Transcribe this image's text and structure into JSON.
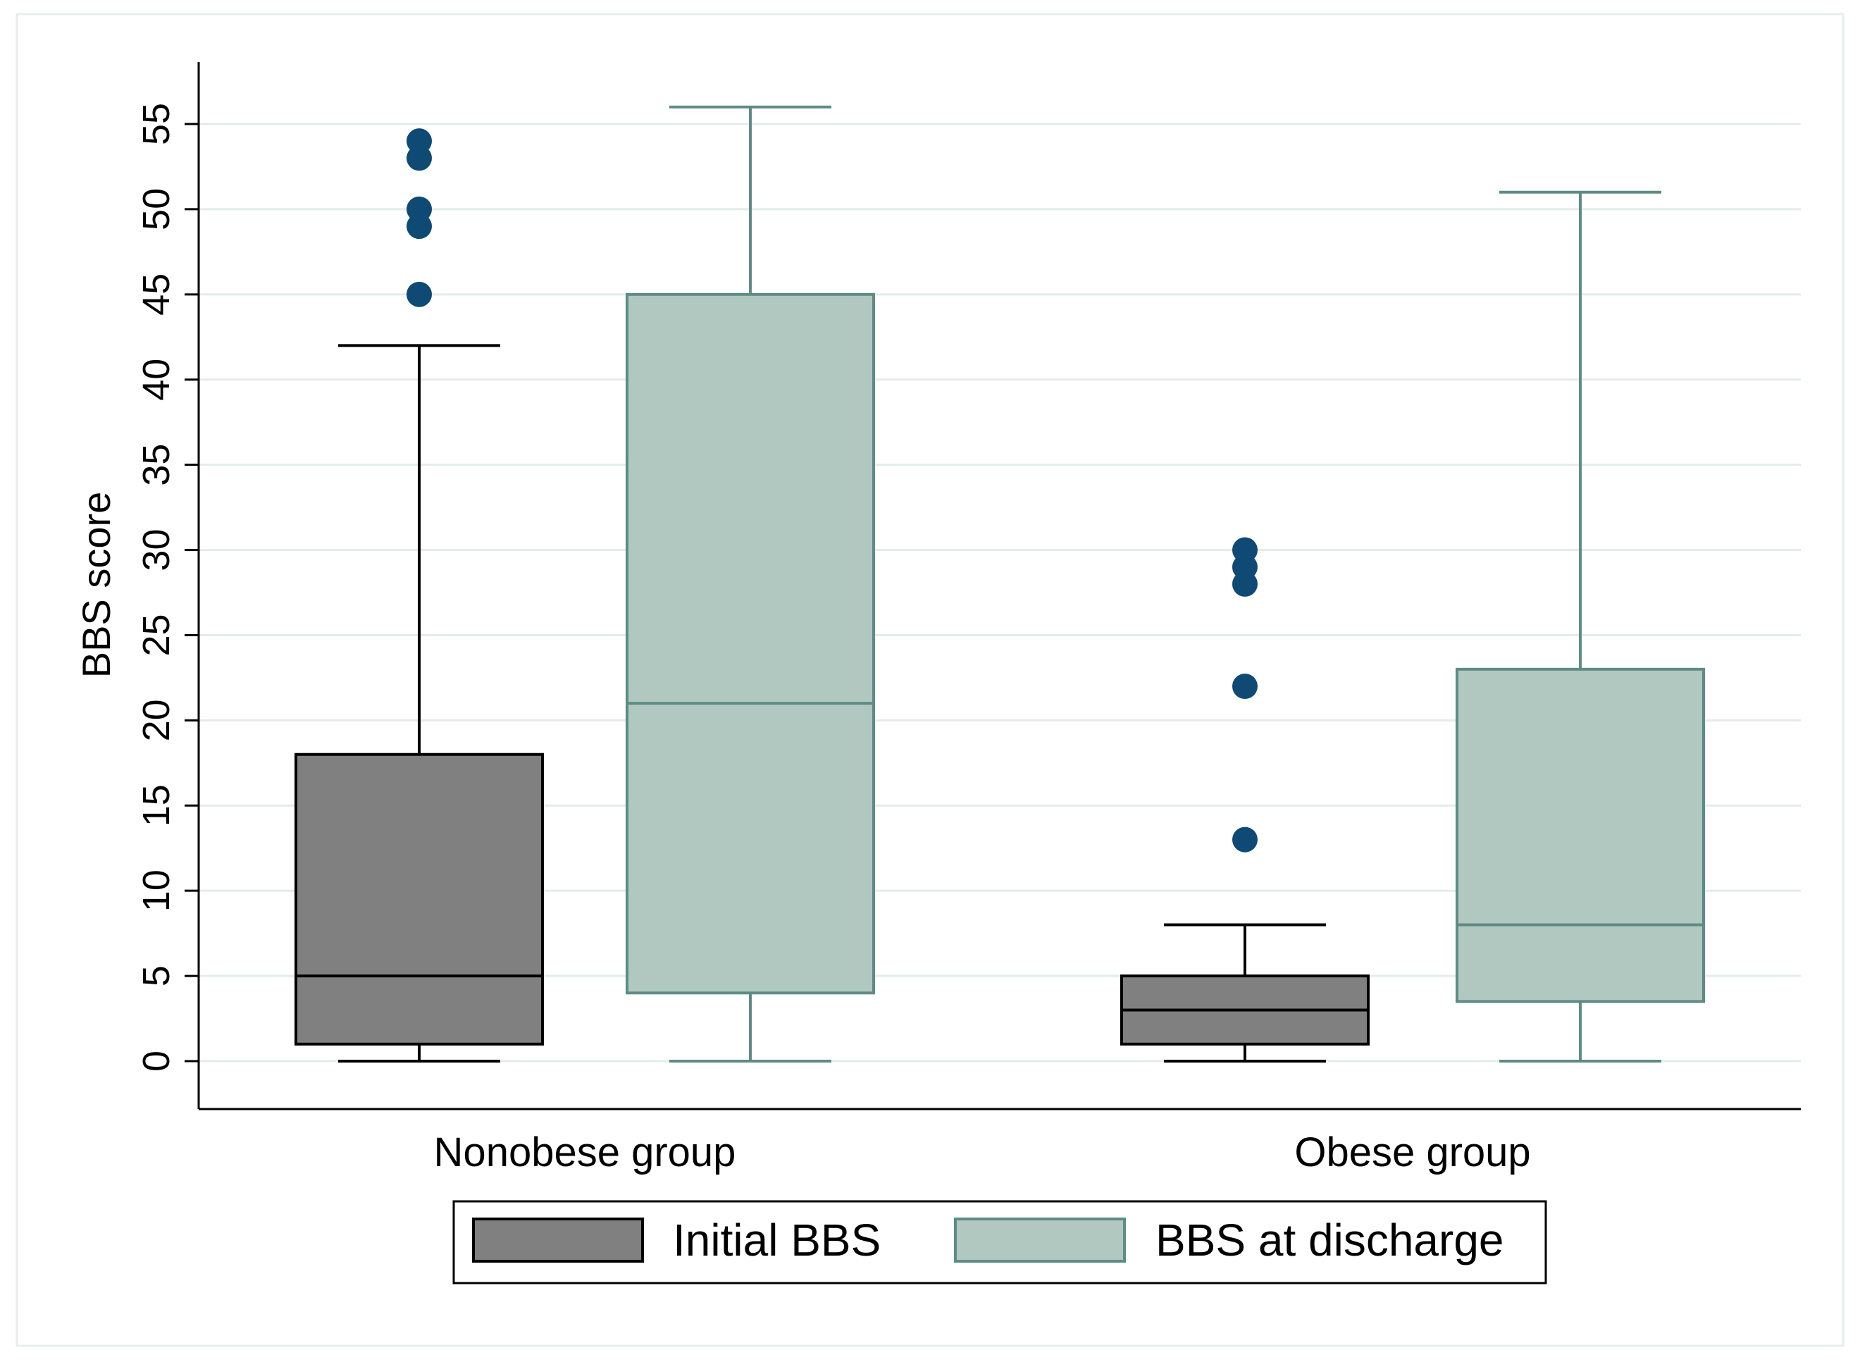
{
  "chart_data": {
    "type": "boxplot",
    "title": "",
    "xlabel": "",
    "ylabel": "BBS score",
    "ylim": [
      -3,
      58
    ],
    "yticks": [
      0,
      5,
      10,
      15,
      20,
      25,
      30,
      35,
      40,
      45,
      50,
      55
    ],
    "grid": true,
    "legend_position": "bottom",
    "categories": [
      "Nonobese group",
      "Obese group"
    ],
    "series": [
      {
        "name": "Initial BBS",
        "fill": "#808080",
        "stroke": "#000000",
        "boxes": [
          {
            "category": "Nonobese group",
            "whisker_low": 0,
            "q1": 1,
            "median": 5,
            "q3": 18,
            "whisker_high": 42,
            "outliers": [
              45,
              49,
              50,
              53,
              54
            ]
          },
          {
            "category": "Obese group",
            "whisker_low": 0,
            "q1": 1,
            "median": 3,
            "q3": 5,
            "whisker_high": 8,
            "outliers": [
              13,
              22,
              28,
              29,
              30
            ]
          }
        ]
      },
      {
        "name": "BBS at discharge",
        "fill": "#b0c8c0",
        "stroke": "#5e8c84",
        "boxes": [
          {
            "category": "Nonobese group",
            "whisker_low": 0,
            "q1": 4,
            "median": 21,
            "q3": 45,
            "whisker_high": 56,
            "outliers": []
          },
          {
            "category": "Obese group",
            "whisker_low": 0,
            "q1": 3.5,
            "median": 8,
            "q3": 23,
            "whisker_high": 51,
            "outliers": []
          }
        ]
      }
    ],
    "outlier_color": "#0e4a74",
    "gridline_color": "#e4ecea"
  }
}
